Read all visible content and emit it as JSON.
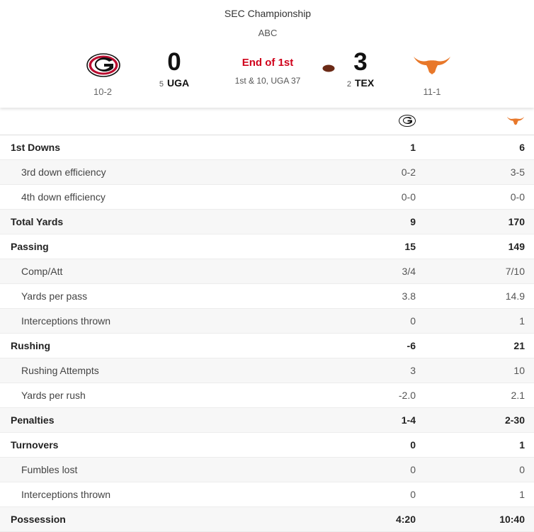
{
  "game": {
    "event": "SEC Championship",
    "network": "ABC",
    "status": "End of 1st",
    "situation": "1st & 10, UGA 37"
  },
  "teams": {
    "home": {
      "abbr": "UGA",
      "rank": "5",
      "score": "0",
      "record": "10-2",
      "logo_icon": "georgia-g-logo",
      "color": "#ba0c2f"
    },
    "away": {
      "abbr": "TEX",
      "rank": "2",
      "score": "3",
      "record": "11-1",
      "logo_icon": "longhorn-logo",
      "color": "#e8782a",
      "has_possession": true
    }
  },
  "stats": [
    {
      "label": "1st Downs",
      "uga": "1",
      "tex": "6",
      "type": "main"
    },
    {
      "label": "3rd down efficiency",
      "uga": "0-2",
      "tex": "3-5",
      "type": "sub"
    },
    {
      "label": "4th down efficiency",
      "uga": "0-0",
      "tex": "0-0",
      "type": "sub"
    },
    {
      "label": "Total Yards",
      "uga": "9",
      "tex": "170",
      "type": "main"
    },
    {
      "label": "Passing",
      "uga": "15",
      "tex": "149",
      "type": "main"
    },
    {
      "label": "Comp/Att",
      "uga": "3/4",
      "tex": "7/10",
      "type": "sub"
    },
    {
      "label": "Yards per pass",
      "uga": "3.8",
      "tex": "14.9",
      "type": "sub"
    },
    {
      "label": "Interceptions thrown",
      "uga": "0",
      "tex": "1",
      "type": "sub"
    },
    {
      "label": "Rushing",
      "uga": "-6",
      "tex": "21",
      "type": "main"
    },
    {
      "label": "Rushing Attempts",
      "uga": "3",
      "tex": "10",
      "type": "sub"
    },
    {
      "label": "Yards per rush",
      "uga": "-2.0",
      "tex": "2.1",
      "type": "sub"
    },
    {
      "label": "Penalties",
      "uga": "1-4",
      "tex": "2-30",
      "type": "main"
    },
    {
      "label": "Turnovers",
      "uga": "0",
      "tex": "1",
      "type": "main"
    },
    {
      "label": "Fumbles lost",
      "uga": "0",
      "tex": "0",
      "type": "sub"
    },
    {
      "label": "Interceptions thrown",
      "uga": "0",
      "tex": "1",
      "type": "sub"
    },
    {
      "label": "Possession",
      "uga": "4:20",
      "tex": "10:40",
      "type": "main"
    }
  ]
}
